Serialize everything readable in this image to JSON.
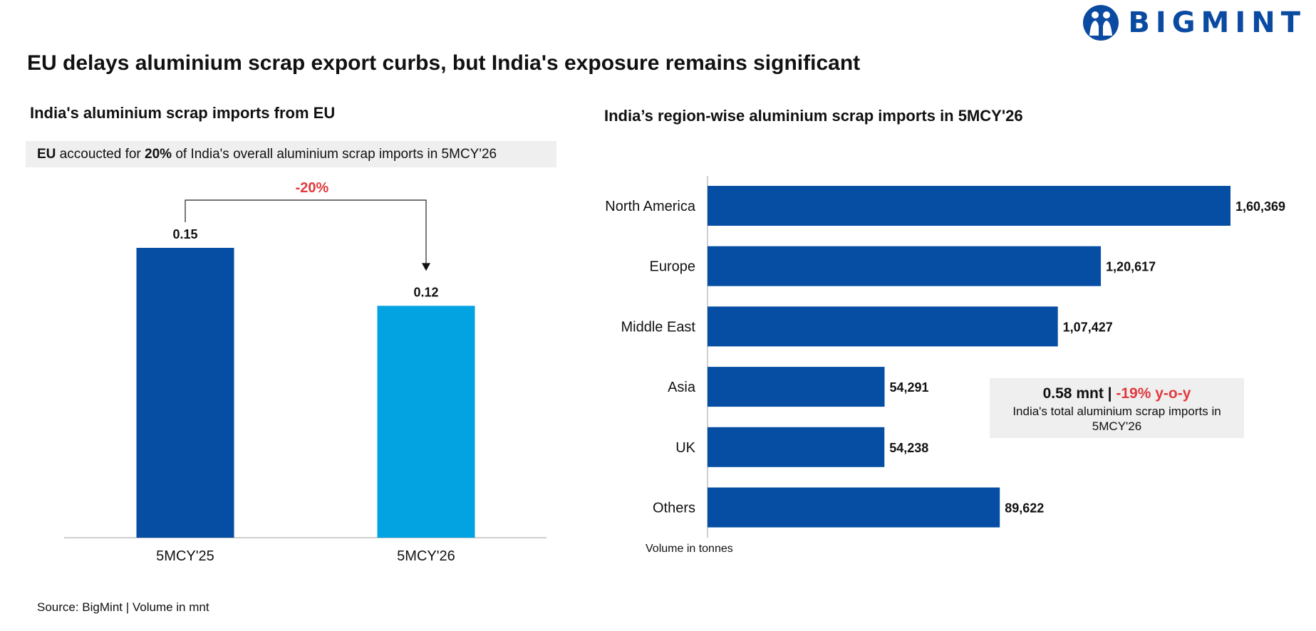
{
  "header": {
    "title": "EU delays aluminium scrap export curbs, but India's exposure remains significant",
    "logo_text": "BIGMINT"
  },
  "callout": {
    "prefix": "EU",
    "text1": " accoucted for ",
    "percent": "20%",
    "text2": " of India's overall aluminium scrap imports in 5MCY'26"
  },
  "info_box": {
    "total": "0.58 mnt",
    "separator": " | ",
    "change": "-19% y-o-y",
    "caption": "India's total aluminium scrap imports in 5MCY'26"
  },
  "footer": {
    "source": "Source: BigMint | Volume in mnt",
    "unit_note": "Volume in tonnes"
  },
  "colors": {
    "dark_blue": "#054ea3",
    "light_blue": "#03a2e1",
    "red": "#e03a3e"
  },
  "chart_data": [
    {
      "type": "bar",
      "title": "India's aluminium scrap imports from EU",
      "categories": [
        "5MCY'25",
        "5MCY'26"
      ],
      "values": [
        0.15,
        0.12
      ],
      "value_labels": [
        "0.15",
        "0.12"
      ],
      "bar_colors": [
        "#054ea3",
        "#03a2e1"
      ],
      "annotation": "-20%",
      "ylim": [
        0,
        0.15
      ],
      "grid": false
    },
    {
      "type": "bar",
      "orientation": "horizontal",
      "title": "India’s region-wise aluminium scrap imports in 5MCY'26",
      "categories": [
        "North America",
        "Europe",
        "Middle East",
        "Asia",
        "UK",
        "Others"
      ],
      "values": [
        160369,
        120617,
        107427,
        54291,
        54238,
        89622
      ],
      "value_labels": [
        "1,60,369",
        "1,20,617",
        "1,07,427",
        "54,291",
        "54,238",
        "89,622"
      ],
      "xlim": [
        0,
        160369
      ],
      "grid": false
    }
  ]
}
